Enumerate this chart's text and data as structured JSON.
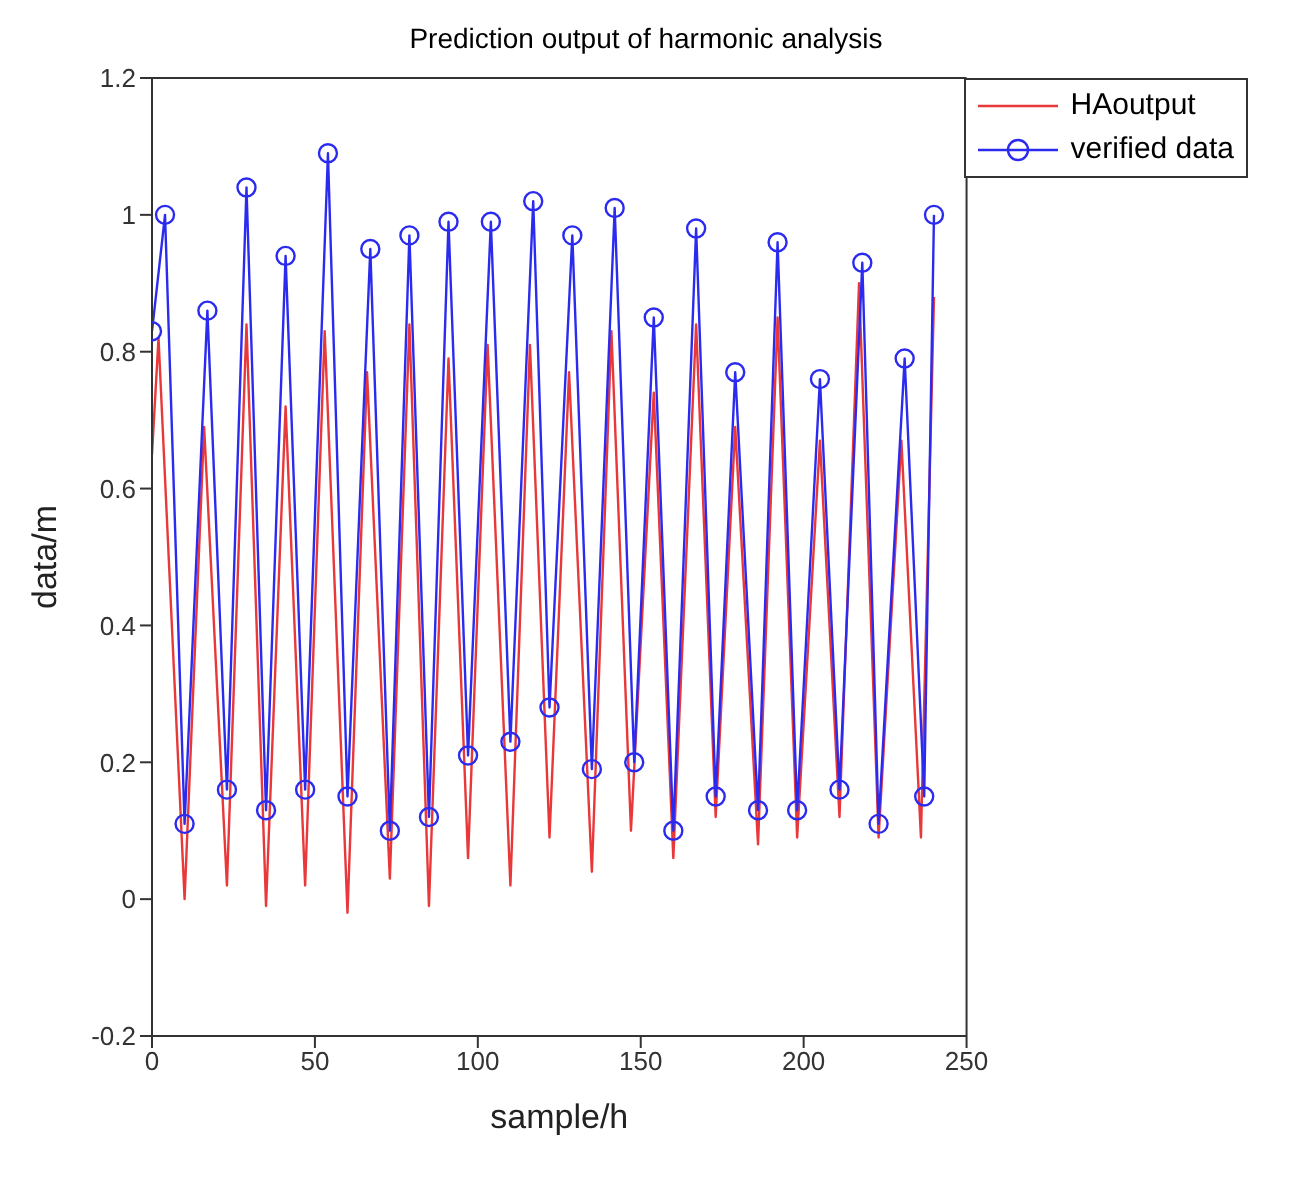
{
  "chart_data": {
    "type": "line",
    "title": "Prediction output of harmonic analysis",
    "xlabel": "sample/h",
    "ylabel": "data/m",
    "xlim": [
      0,
      250
    ],
    "xticks": [
      0,
      50,
      100,
      150,
      200,
      250
    ],
    "ylim": [
      -0.2,
      1.2
    ],
    "yticks": [
      -0.2,
      0,
      0.2,
      0.4,
      0.6,
      0.8,
      1,
      1.2
    ],
    "legend": "top right",
    "line_style": "solid",
    "series": [
      {
        "name": "HAoutput",
        "color": "#e8383a",
        "marker": "none",
        "x": [
          0,
          2,
          10,
          16,
          23,
          29,
          35,
          41,
          47,
          53,
          60,
          66,
          73,
          79,
          85,
          91,
          97,
          103,
          110,
          116,
          122,
          128,
          135,
          141,
          147,
          154,
          160,
          167,
          173,
          179,
          186,
          192,
          198,
          205,
          211,
          217,
          223,
          230,
          236,
          240
        ],
        "values": [
          0.65,
          0.82,
          0.0,
          0.69,
          0.02,
          0.84,
          -0.01,
          0.72,
          0.02,
          0.83,
          -0.02,
          0.77,
          0.03,
          0.84,
          -0.01,
          0.79,
          0.06,
          0.81,
          0.02,
          0.81,
          0.09,
          0.77,
          0.04,
          0.83,
          0.1,
          0.74,
          0.06,
          0.84,
          0.12,
          0.69,
          0.08,
          0.85,
          0.09,
          0.67,
          0.12,
          0.9,
          0.09,
          0.67,
          0.09,
          0.88
        ]
      },
      {
        "name": "verified data",
        "color": "#2b2bf0",
        "marker": "circle",
        "x": [
          0,
          4,
          10,
          17,
          23,
          29,
          35,
          41,
          47,
          54,
          60,
          67,
          73,
          79,
          85,
          91,
          97,
          104,
          110,
          117,
          122,
          129,
          135,
          142,
          148,
          154,
          160,
          167,
          173,
          179,
          186,
          192,
          198,
          205,
          211,
          218,
          223,
          231,
          237,
          240
        ],
        "values": [
          0.83,
          1.0,
          0.11,
          0.86,
          0.16,
          1.04,
          0.13,
          0.94,
          0.16,
          1.09,
          0.15,
          0.95,
          0.1,
          0.97,
          0.12,
          0.99,
          0.21,
          0.99,
          0.23,
          1.02,
          0.28,
          0.97,
          0.19,
          1.01,
          0.2,
          0.85,
          0.1,
          0.98,
          0.15,
          0.77,
          0.13,
          0.96,
          0.13,
          0.76,
          0.16,
          0.93,
          0.11,
          0.79,
          0.15,
          1.0
        ]
      }
    ]
  }
}
